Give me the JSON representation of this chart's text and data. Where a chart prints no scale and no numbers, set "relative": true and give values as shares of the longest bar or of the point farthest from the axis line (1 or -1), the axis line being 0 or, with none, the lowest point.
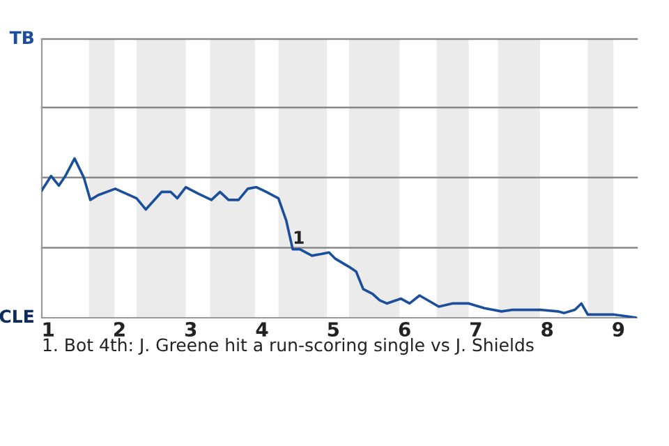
{
  "chart_data": {
    "type": "line",
    "relative": true,
    "x": [
      0.91,
      1.04,
      1.15,
      1.24,
      1.37,
      1.5,
      1.59,
      1.7,
      1.94,
      2.24,
      2.37,
      2.59,
      2.72,
      2.81,
      2.93,
      3.1,
      3.29,
      3.41,
      3.53,
      3.67,
      3.8,
      3.92,
      4.06,
      4.23,
      4.34,
      4.43,
      4.53,
      4.7,
      4.83,
      4.94,
      5.03,
      5.22,
      5.32,
      5.42,
      5.55,
      5.65,
      5.75,
      5.95,
      6.07,
      6.21,
      6.48,
      6.67,
      6.9,
      7.12,
      7.36,
      7.52,
      7.9,
      8.15,
      8.24,
      8.39,
      8.48,
      8.57,
      8.94,
      9.11,
      9.26
    ],
    "series": [
      {
        "color": "#1b4f9c",
        "values": [
          0.8,
          0.89,
          0.83,
          0.89,
          1,
          0.88,
          0.74,
          0.77,
          0.81,
          0.75,
          0.68,
          0.79,
          0.79,
          0.75,
          0.82,
          0.78,
          0.74,
          0.79,
          0.74,
          0.74,
          0.81,
          0.82,
          0.79,
          0.75,
          0.61,
          0.43,
          0.43,
          0.39,
          0.4,
          0.41,
          0.37,
          0.32,
          0.29,
          0.18,
          0.15,
          0.11,
          0.09,
          0.12,
          0.09,
          0.14,
          0.07,
          0.09,
          0.09,
          0.06,
          0.04,
          0.05,
          0.05,
          0.04,
          0.03,
          0.05,
          0.09,
          0.02,
          0.02,
          0.01,
          0
        ]
      }
    ],
    "xlim": [
      0.91,
      9.26
    ],
    "xticks": [
      1,
      2,
      3,
      4,
      5,
      6,
      7,
      8,
      9
    ],
    "ref_lines": [
      {
        "axis": "y",
        "value": 0.44,
        "color": "#888888"
      },
      {
        "axis": "y",
        "value": 0.88,
        "color": "#888888"
      },
      {
        "axis": "y",
        "value": 1.32,
        "color": "#888888"
      },
      {
        "axis": "y",
        "value": 1.75,
        "color": "#888888"
      }
    ],
    "bands": [
      {
        "axis": "x",
        "from": 1.57,
        "to": 1.93,
        "color": "#ebebeb"
      },
      {
        "axis": "x",
        "from": 2.24,
        "to": 2.93,
        "color": "#ebebeb"
      },
      {
        "axis": "x",
        "from": 3.27,
        "to": 3.9,
        "color": "#ebebeb"
      },
      {
        "axis": "x",
        "from": 4.23,
        "to": 4.91,
        "color": "#ebebeb"
      },
      {
        "axis": "x",
        "from": 5.22,
        "to": 5.93,
        "color": "#ebebeb"
      },
      {
        "axis": "x",
        "from": 6.45,
        "to": 6.9,
        "color": "#ebebeb"
      },
      {
        "axis": "x",
        "from": 7.31,
        "to": 7.9,
        "color": "#ebebeb"
      },
      {
        "axis": "x",
        "from": 8.57,
        "to": 8.93,
        "color": "#ebebeb"
      }
    ],
    "annotations": [
      {
        "text": "1",
        "x": 4.43,
        "y": 0.43
      },
      "TB",
      "CLE",
      "1. Bot 4th: J. Greene hit a run-scoring single vs J. Shields"
    ]
  }
}
